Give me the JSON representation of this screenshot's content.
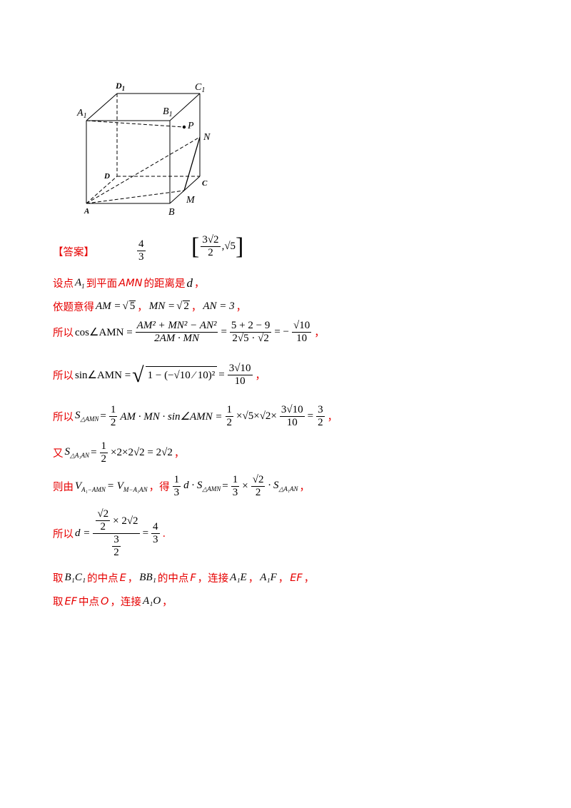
{
  "figure": {
    "labels": {
      "A": "A",
      "B": "B",
      "C": "C",
      "D": "D",
      "A1": "A",
      "B1": "B",
      "C1": "C",
      "D1": "D",
      "sub1": "1",
      "P": "P",
      "N": "N",
      "M": "M"
    }
  },
  "answer": {
    "label": "【答案】",
    "first": {
      "num": "4",
      "den": "3"
    },
    "second": {
      "num": "3√2",
      "den": "2",
      "tail": ",√5"
    }
  },
  "lines": {
    "l1": {
      "a": "设点",
      "b": "到平面",
      "c": "AMN",
      "d": "的距离是",
      "e": "d",
      "f": "，"
    },
    "l2": {
      "a": "依题意得",
      "b": "AM = ",
      "c": "5",
      "d": "，",
      "e": "MN = ",
      "f": "2",
      "g": "，",
      "h": "AN = 3",
      "i": "，"
    },
    "l3": {
      "a": "所以",
      "b": "cos∠AMN =",
      "num": "AM² + MN² − AN²",
      "den": "2AM · MN",
      "num2": "5 + 2 − 9",
      "den2": "2√5 · √2",
      "res_num": "√10",
      "res_den": "10",
      "tail": "，"
    },
    "l4": {
      "a": "所以",
      "b": "sin∠AMN =",
      "inner": "1 − (−√10 ⁄ 10)²",
      "res_num": "3√10",
      "res_den": "10",
      "tail": "，"
    },
    "l5": {
      "a": "所以",
      "b": "S",
      "sub": "△AMN",
      "c": "=",
      "f1n": "1",
      "f1d": "2",
      "d": "AM · MN · sin∠AMN =",
      "f2n": "1",
      "f2d": "2",
      "e": "×√5×√2×",
      "f3n": "3√10",
      "f3d": "10",
      "f": "=",
      "f4n": "3",
      "f4d": "2",
      "tail": "，"
    },
    "l6": {
      "a": "又",
      "b": "S",
      "sub": "△A₁AN",
      "c": "=",
      "fn": "1",
      "fd": "2",
      "d": "×2×2√2 = 2√2",
      "tail": "，"
    },
    "l7": {
      "a": "则由",
      "b": "V",
      "sub1": "A₁−AMN",
      "c": "= V",
      "sub2": "M−A₁AN",
      "d": "，得",
      "fn": "1",
      "fd": "3",
      "e": "d · S",
      "sub3": "△AMN",
      "f": "=",
      "gn": "1",
      "gd": "3",
      "h": "×",
      "in": "√2",
      "id": "2",
      "j": "· S",
      "sub4": "△A₁AN",
      "tail": "，"
    },
    "l8": {
      "a": "所以",
      "b": "d =",
      "top": "√2",
      "top2": "2",
      "mid": "× 2√2",
      "bn": "3",
      "bd": "2",
      "c": "=",
      "rn": "4",
      "rd": "3",
      "tail": "."
    },
    "l9": {
      "a": "取",
      "b": "B₁C₁",
      "c": "的中点",
      "d": "E",
      "e": "，",
      "f": "BB₁",
      "g": "的中点",
      "h": "F",
      "i": "，连接",
      "j": "A₁E",
      "k": "，",
      "l": "A₁F",
      "m": "，",
      "n": "EF",
      "o": "，"
    },
    "l10": {
      "a": "取",
      "b": "EF",
      "c": "中点",
      "d": "O",
      "e": "，连接",
      "f": "A₁O",
      "g": "，"
    }
  }
}
